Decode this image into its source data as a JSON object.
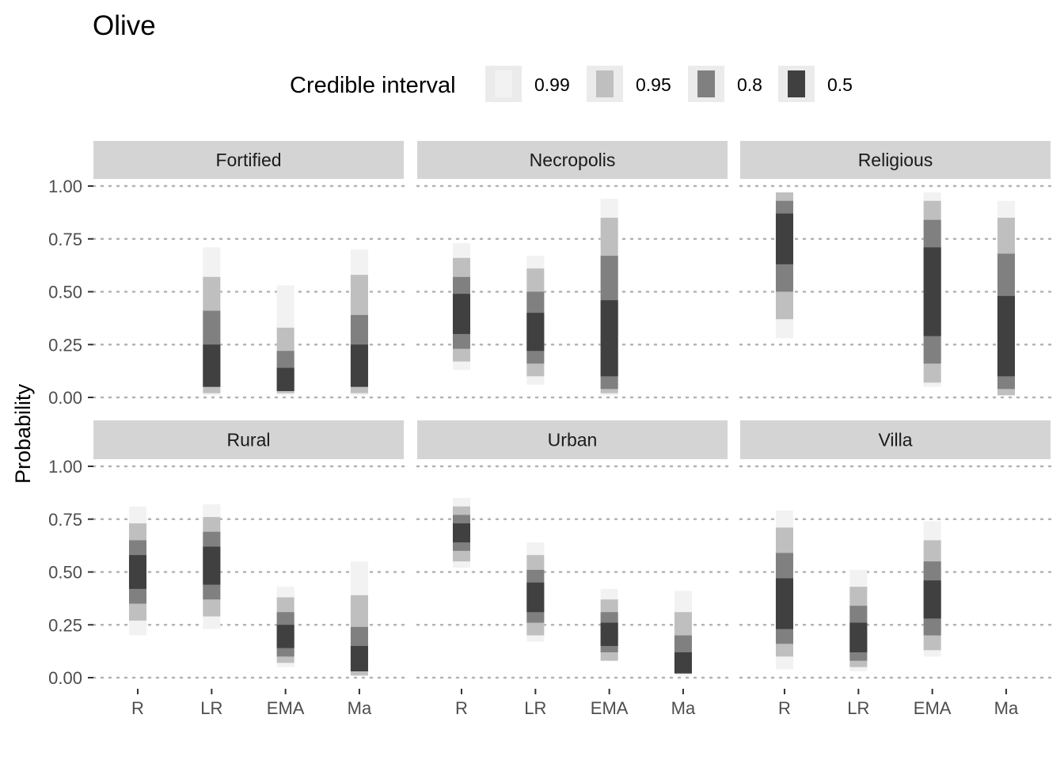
{
  "title": "Olive",
  "legend": {
    "title": "Credible interval",
    "items": [
      {
        "label": "0.99",
        "color": "#f2f2f2"
      },
      {
        "label": "0.95",
        "color": "#bfbfbf"
      },
      {
        "label": "0.8",
        "color": "#808080"
      },
      {
        "label": "0.5",
        "color": "#404040"
      }
    ]
  },
  "chart_data": {
    "type": "interval",
    "title": "Olive",
    "ylabel": "Probability",
    "xlabel": "",
    "categories": [
      "R",
      "LR",
      "EMA",
      "Ma"
    ],
    "ylim": [
      0,
      1
    ],
    "yticks": [
      "0.00",
      "0.25",
      "0.50",
      "0.75",
      "1.00"
    ],
    "grid": "horizontal dotted",
    "legend_position": "top",
    "interval_levels": [
      "0.99",
      "0.95",
      "0.8",
      "0.5"
    ],
    "panels": [
      {
        "name": "Fortified",
        "series": [
          null,
          {
            "category": "LR",
            "i99": [
              0.01,
              0.71
            ],
            "i95": [
              0.02,
              0.57
            ],
            "i80": [
              0.05,
              0.41
            ],
            "i50": [
              0.05,
              0.25
            ]
          },
          {
            "category": "EMA",
            "i99": [
              0.01,
              0.53
            ],
            "i95": [
              0.02,
              0.33
            ],
            "i80": [
              0.03,
              0.22
            ],
            "i50": [
              0.03,
              0.14
            ]
          },
          {
            "category": "Ma",
            "i99": [
              0.01,
              0.7
            ],
            "i95": [
              0.02,
              0.58
            ],
            "i80": [
              0.05,
              0.39
            ],
            "i50": [
              0.05,
              0.25
            ]
          }
        ]
      },
      {
        "name": "Necropolis",
        "series": [
          {
            "category": "R",
            "i99": [
              0.13,
              0.73
            ],
            "i95": [
              0.17,
              0.66
            ],
            "i80": [
              0.23,
              0.57
            ],
            "i50": [
              0.3,
              0.49
            ]
          },
          {
            "category": "LR",
            "i99": [
              0.06,
              0.67
            ],
            "i95": [
              0.1,
              0.61
            ],
            "i80": [
              0.16,
              0.5
            ],
            "i50": [
              0.22,
              0.4
            ]
          },
          {
            "category": "EMA",
            "i99": [
              0.01,
              0.94
            ],
            "i95": [
              0.02,
              0.85
            ],
            "i80": [
              0.04,
              0.67
            ],
            "i50": [
              0.1,
              0.46
            ]
          },
          null
        ]
      },
      {
        "name": "Religious",
        "series": [
          {
            "category": "R",
            "i99": [
              0.28,
              0.97
            ],
            "i95": [
              0.37,
              0.97
            ],
            "i80": [
              0.5,
              0.93
            ],
            "i50": [
              0.63,
              0.87
            ]
          },
          null,
          {
            "category": "EMA",
            "i99": [
              0.05,
              0.97
            ],
            "i95": [
              0.07,
              0.93
            ],
            "i80": [
              0.16,
              0.84
            ],
            "i50": [
              0.29,
              0.71
            ]
          },
          {
            "category": "Ma",
            "i99": [
              0.01,
              0.93
            ],
            "i95": [
              0.01,
              0.85
            ],
            "i80": [
              0.04,
              0.68
            ],
            "i50": [
              0.1,
              0.48
            ]
          }
        ]
      },
      {
        "name": "Rural",
        "series": [
          {
            "category": "R",
            "i99": [
              0.2,
              0.81
            ],
            "i95": [
              0.27,
              0.73
            ],
            "i80": [
              0.35,
              0.65
            ],
            "i50": [
              0.42,
              0.58
            ]
          },
          {
            "category": "LR",
            "i99": [
              0.23,
              0.82
            ],
            "i95": [
              0.29,
              0.76
            ],
            "i80": [
              0.37,
              0.69
            ],
            "i50": [
              0.44,
              0.62
            ]
          },
          {
            "category": "EMA",
            "i99": [
              0.05,
              0.43
            ],
            "i95": [
              0.07,
              0.38
            ],
            "i80": [
              0.1,
              0.31
            ],
            "i50": [
              0.14,
              0.25
            ]
          },
          {
            "category": "Ma",
            "i99": [
              0.01,
              0.55
            ],
            "i95": [
              0.01,
              0.39
            ],
            "i80": [
              0.03,
              0.24
            ],
            "i50": [
              0.03,
              0.15
            ]
          }
        ]
      },
      {
        "name": "Urban",
        "series": [
          {
            "category": "R",
            "i99": [
              0.52,
              0.85
            ],
            "i95": [
              0.55,
              0.81
            ],
            "i80": [
              0.6,
              0.77
            ],
            "i50": [
              0.64,
              0.73
            ]
          },
          {
            "category": "LR",
            "i99": [
              0.17,
              0.64
            ],
            "i95": [
              0.2,
              0.58
            ],
            "i80": [
              0.26,
              0.51
            ],
            "i50": [
              0.31,
              0.45
            ]
          },
          {
            "category": "EMA",
            "i99": [
              0.08,
              0.42
            ],
            "i95": [
              0.08,
              0.37
            ],
            "i80": [
              0.12,
              0.31
            ],
            "i50": [
              0.15,
              0.26
            ]
          },
          {
            "category": "Ma",
            "i99": [
              0.01,
              0.41
            ],
            "i95": [
              0.02,
              0.31
            ],
            "i80": [
              0.02,
              0.2
            ],
            "i50": [
              0.02,
              0.12
            ]
          }
        ]
      },
      {
        "name": "Villa",
        "series": [
          {
            "category": "R",
            "i99": [
              0.04,
              0.79
            ],
            "i95": [
              0.1,
              0.71
            ],
            "i80": [
              0.16,
              0.59
            ],
            "i50": [
              0.23,
              0.47
            ]
          },
          {
            "category": "LR",
            "i99": [
              0.03,
              0.51
            ],
            "i95": [
              0.05,
              0.43
            ],
            "i80": [
              0.08,
              0.34
            ],
            "i50": [
              0.12,
              0.26
            ]
          },
          {
            "category": "EMA",
            "i99": [
              0.1,
              0.74
            ],
            "i95": [
              0.13,
              0.65
            ],
            "i80": [
              0.2,
              0.55
            ],
            "i50": [
              0.28,
              0.46
            ]
          },
          null
        ]
      }
    ]
  }
}
